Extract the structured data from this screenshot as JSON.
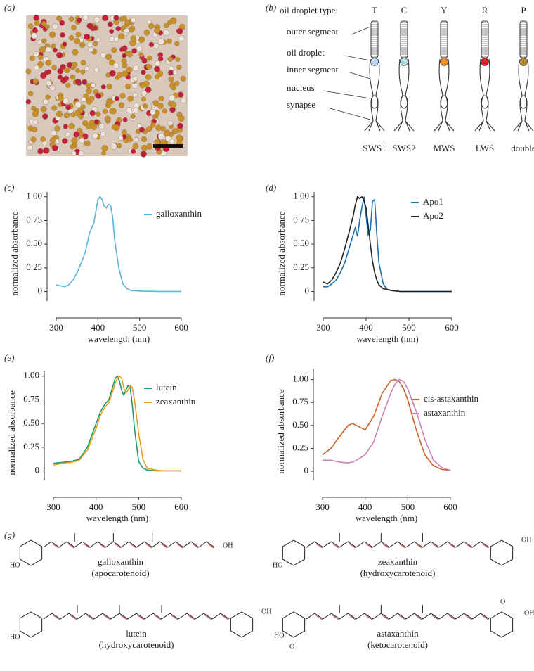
{
  "panel_labels": [
    "(a)",
    "(b)",
    "(c)",
    "(d)",
    "(e)",
    "(f)",
    "(g)"
  ],
  "diagram": {
    "heading": "oil droplet type:",
    "droplet_types": [
      "T",
      "C",
      "Y",
      "R",
      "P"
    ],
    "droplet_colors": [
      "#b9d3ea",
      "#aee0e6",
      "#f08a24",
      "#e0202c",
      "#b08a30"
    ],
    "parts": [
      "outer segment",
      "oil droplet",
      "inner segment",
      "nucleus",
      "synapse"
    ],
    "cell_types": [
      "SWS1",
      "SWS2",
      "MWS",
      "LWS",
      "double"
    ]
  },
  "chart_data": [
    {
      "type": "line",
      "x_label": "wavelength (nm)",
      "y_label": "normalized absorbance",
      "x": [
        300,
        310,
        320,
        330,
        340,
        350,
        360,
        370,
        380,
        390,
        400,
        405,
        410,
        415,
        420,
        425,
        430,
        435,
        440,
        450,
        460,
        470,
        480,
        500,
        550,
        600
      ],
      "series": [
        {
          "name": "galloxanthin",
          "color": "#5ab4d6",
          "values": [
            0.07,
            0.06,
            0.05,
            0.07,
            0.12,
            0.2,
            0.3,
            0.42,
            0.62,
            0.72,
            0.97,
            1.0,
            0.97,
            0.9,
            0.88,
            0.92,
            0.91,
            0.8,
            0.55,
            0.25,
            0.08,
            0.03,
            0.01,
            0.005,
            0,
            0
          ]
        }
      ],
      "xlim": [
        300,
        600
      ],
      "ylim": [
        -0.1,
        1.05
      ],
      "xticks": [
        300,
        400,
        500,
        600
      ],
      "yticks": [
        0,
        0.25,
        {
          "value": 0.5,
          "label": "0.50"
        },
        0.75,
        {
          "value": 1,
          "label": "1.00"
        }
      ]
    },
    {
      "type": "line",
      "x_label": "wavelength (nm)",
      "y_label": "normalized absorbance",
      "x": [
        300,
        310,
        320,
        330,
        340,
        350,
        360,
        370,
        375,
        380,
        385,
        390,
        395,
        400,
        405,
        410,
        415,
        420,
        425,
        430,
        440,
        450,
        460,
        480,
        500,
        550,
        600
      ],
      "series": [
        {
          "name": "Apo1",
          "color": "#1f6fa8",
          "values": [
            0.05,
            0.05,
            0.08,
            0.12,
            0.2,
            0.3,
            0.45,
            0.6,
            0.68,
            0.58,
            0.75,
            0.88,
            1.0,
            0.8,
            0.6,
            0.65,
            0.95,
            0.97,
            0.6,
            0.3,
            0.08,
            0.02,
            0.01,
            0,
            0,
            0,
            0
          ]
        },
        {
          "name": "Apo2",
          "color": "#222222",
          "values": [
            0.1,
            0.08,
            0.12,
            0.2,
            0.3,
            0.45,
            0.62,
            0.8,
            0.92,
            1.0,
            0.98,
            1.0,
            0.96,
            0.88,
            0.7,
            0.5,
            0.32,
            0.2,
            0.12,
            0.07,
            0.03,
            0.02,
            0.01,
            0,
            0,
            0,
            0
          ]
        }
      ],
      "xlim": [
        300,
        600
      ],
      "ylim": [
        -0.1,
        1.05
      ],
      "xticks": [
        300,
        400,
        500,
        600
      ],
      "yticks": [
        0,
        0.25,
        {
          "value": 0.5,
          "label": "0.50"
        },
        0.75,
        {
          "value": 1,
          "label": "1.00"
        }
      ]
    },
    {
      "type": "line",
      "x_label": "wavelength (nm)",
      "y_label": "normalized absorbance",
      "x": [
        300,
        320,
        340,
        360,
        380,
        400,
        410,
        420,
        430,
        440,
        445,
        450,
        455,
        460,
        465,
        470,
        475,
        480,
        485,
        490,
        500,
        510,
        520,
        540,
        560,
        600
      ],
      "series": [
        {
          "name": "lutein",
          "color": "#1a9a6c",
          "values": [
            0.08,
            0.09,
            0.1,
            0.12,
            0.25,
            0.5,
            0.62,
            0.7,
            0.75,
            0.9,
            0.98,
            1.0,
            0.95,
            0.85,
            0.8,
            0.85,
            0.9,
            0.88,
            0.7,
            0.45,
            0.1,
            0.03,
            0.01,
            0,
            0,
            0
          ]
        },
        {
          "name": "zeaxanthin",
          "color": "#e8a020",
          "values": [
            0.06,
            0.08,
            0.09,
            0.11,
            0.22,
            0.45,
            0.58,
            0.67,
            0.72,
            0.85,
            0.93,
            0.98,
            1.0,
            0.98,
            0.88,
            0.82,
            0.85,
            0.9,
            0.88,
            0.75,
            0.4,
            0.12,
            0.03,
            0.01,
            0,
            0
          ]
        }
      ],
      "xlim": [
        300,
        600
      ],
      "ylim": [
        -0.1,
        1.05
      ],
      "xticks": [
        300,
        400,
        500,
        600
      ],
      "yticks": [
        0,
        0.25,
        {
          "value": 0.5,
          "label": "0.50"
        },
        0.75,
        {
          "value": 1,
          "label": "1.00"
        }
      ]
    },
    {
      "type": "line",
      "x_label": "wavelength (nm)",
      "y_label": "normalized absorbance",
      "x": [
        300,
        320,
        340,
        360,
        370,
        380,
        400,
        420,
        440,
        460,
        470,
        480,
        490,
        500,
        520,
        540,
        560,
        580,
        600
      ],
      "series": [
        {
          "name": "cis-astaxanthin",
          "color": "#d0602a",
          "values": [
            0.18,
            0.25,
            0.38,
            0.5,
            0.52,
            0.5,
            0.45,
            0.6,
            0.85,
            0.99,
            1.0,
            0.98,
            0.9,
            0.78,
            0.45,
            0.18,
            0.06,
            0.02,
            0.01
          ]
        },
        {
          "name": "astaxanthin",
          "color": "#cc80b8",
          "values": [
            0.12,
            0.12,
            0.1,
            0.09,
            0.1,
            0.12,
            0.18,
            0.32,
            0.6,
            0.85,
            0.95,
            1.0,
            0.98,
            0.9,
            0.65,
            0.35,
            0.12,
            0.04,
            0.01
          ]
        }
      ],
      "xlim": [
        300,
        600
      ],
      "ylim": [
        -0.1,
        1.12
      ],
      "xticks": [
        300,
        400,
        500,
        600
      ],
      "yticks": [
        0,
        0.25,
        {
          "value": 0.5,
          "label": "0.50"
        },
        0.75,
        {
          "value": 1,
          "label": "1.00"
        }
      ]
    }
  ],
  "structures": [
    {
      "name": "galloxanthin",
      "class": "(apocarotenoid)",
      "groups": [
        "OH",
        "HO"
      ]
    },
    {
      "name": "zeaxanthin",
      "class": "(hydroxycarotenoid)",
      "groups": [
        "OH",
        "HO"
      ]
    },
    {
      "name": "lutein",
      "class": "(hydroxycarotenoid)",
      "groups": [
        "OH",
        "HO"
      ]
    },
    {
      "name": "astaxanthin",
      "class": "(ketocarotenoid)",
      "groups": [
        "O",
        "OH",
        "HO",
        "O"
      ]
    }
  ]
}
